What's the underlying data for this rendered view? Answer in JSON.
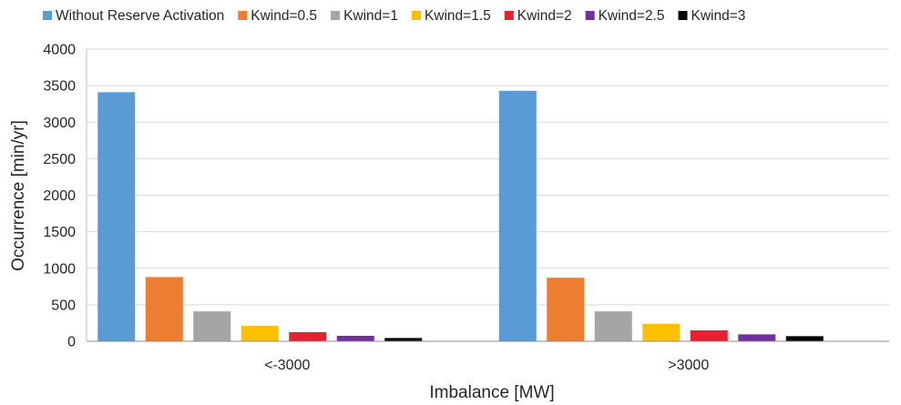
{
  "chart_data": {
    "type": "bar",
    "title": "",
    "xlabel": "Imbalance [MW]",
    "ylabel": "Occurrence [min/yr]",
    "ylim": [
      0,
      4000
    ],
    "yticks": [
      0,
      500,
      1000,
      1500,
      2000,
      2500,
      3000,
      3500,
      4000
    ],
    "grid": true,
    "legend_position": "top",
    "categories": [
      "<-3000",
      ">3000"
    ],
    "series": [
      {
        "name": "Without Reserve Activation",
        "color": "#5b9bd5",
        "values": [
          3410,
          3430
        ]
      },
      {
        "name": "Kwind=0.5",
        "color": "#ed7d31",
        "values": [
          880,
          870
        ]
      },
      {
        "name": "Kwind=1",
        "color": "#a5a5a5",
        "values": [
          410,
          410
        ]
      },
      {
        "name": "Kwind=1.5",
        "color": "#ffc000",
        "values": [
          210,
          240
        ]
      },
      {
        "name": "Kwind=2",
        "color": "#e7202e",
        "values": [
          125,
          150
        ]
      },
      {
        "name": "Kwind=2.5",
        "color": "#7030a0",
        "values": [
          75,
          95
        ]
      },
      {
        "name": "Kwind=3",
        "color": "#000000",
        "values": [
          45,
          70
        ]
      }
    ]
  }
}
